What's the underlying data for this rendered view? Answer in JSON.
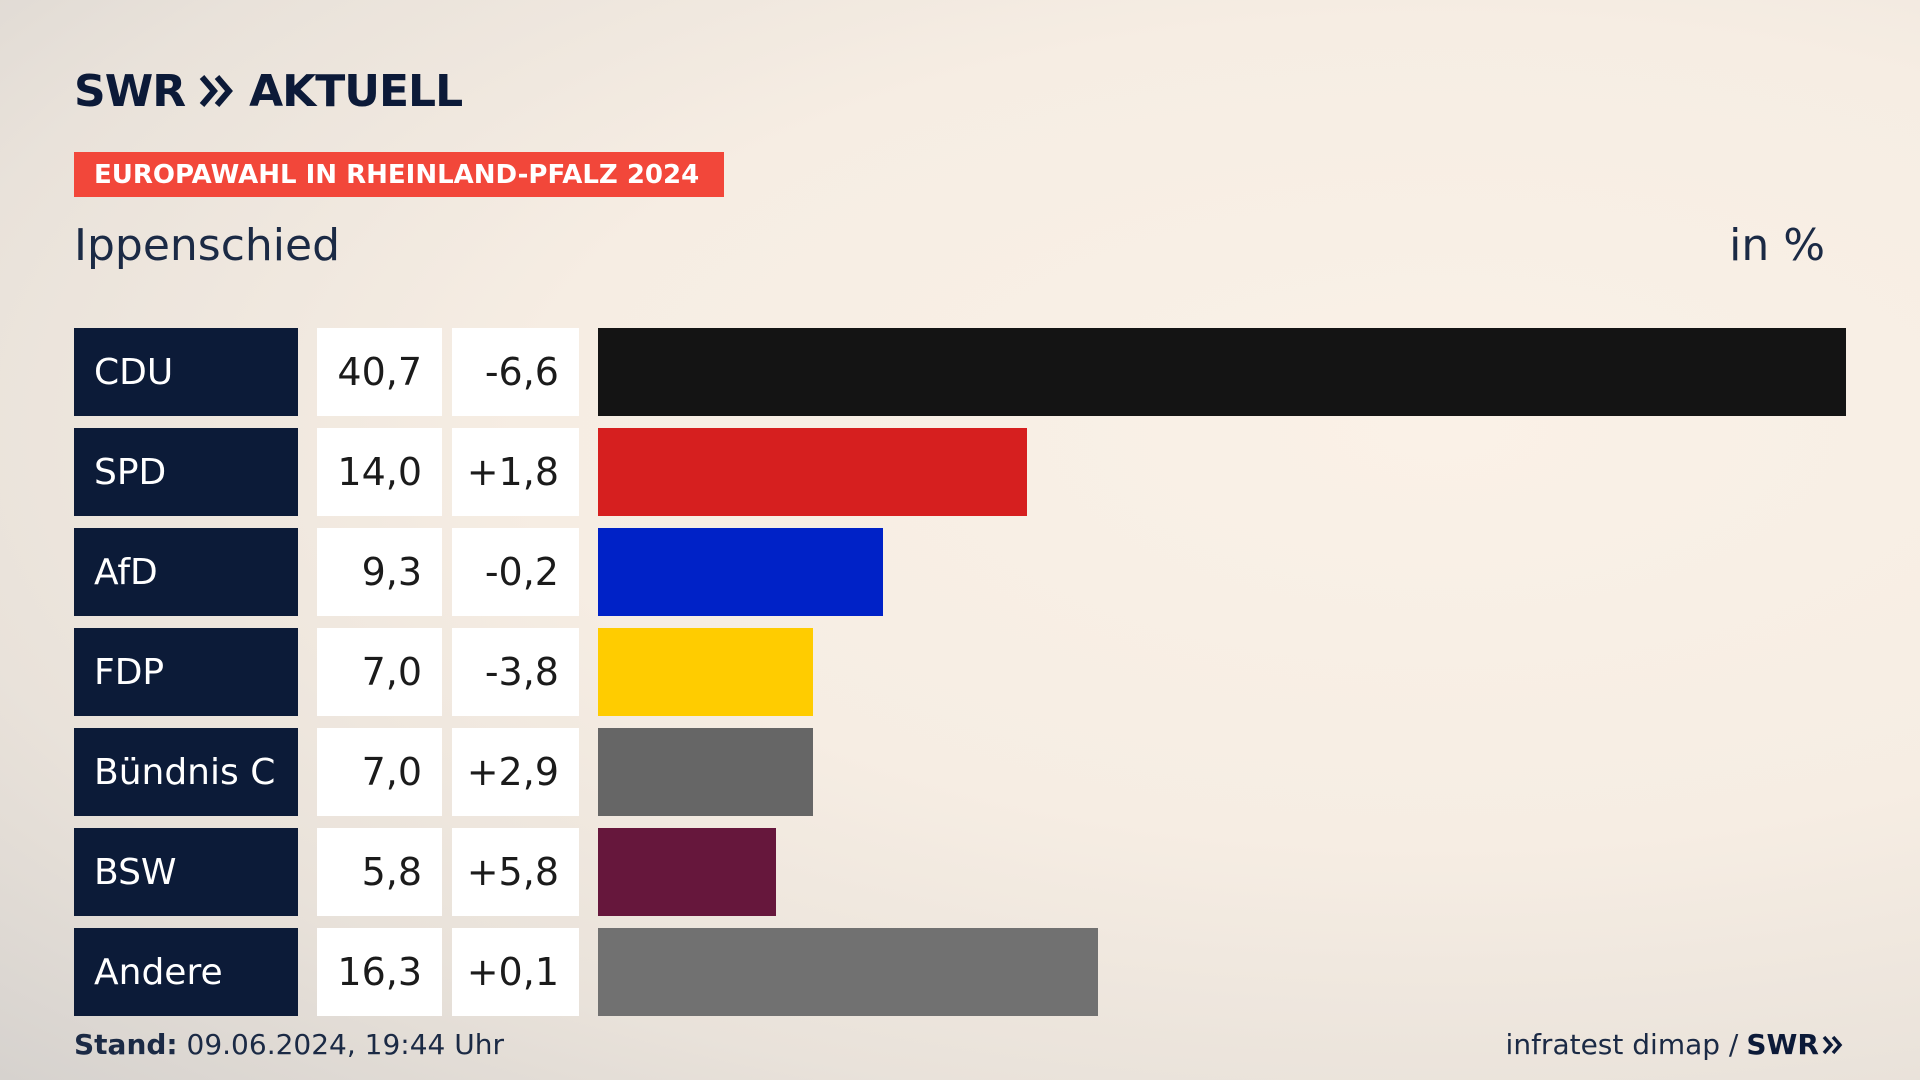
{
  "brand": {
    "logo_left": "SWR",
    "logo_right": "AKTUELL",
    "mini_logo": "SWR"
  },
  "banner": "EUROPAWAHL IN RHEINLAND-PFALZ 2024",
  "place": "Ippenschied",
  "unit": "in %",
  "footer": {
    "stand_label": "Stand:",
    "stand_value": "09.06.2024, 19:44 Uhr",
    "source": "infratest dimap /"
  },
  "colors": {
    "navy": "#0c1b38",
    "banner": "#f2473a"
  },
  "chart_data": {
    "type": "bar",
    "orientation": "horizontal",
    "categories": [
      "CDU",
      "SPD",
      "AfD",
      "FDP",
      "Bündnis C",
      "BSW",
      "Andere"
    ],
    "values": [
      40.7,
      14.0,
      9.3,
      7.0,
      7.0,
      5.8,
      16.3
    ],
    "value_labels": [
      "40,7",
      "14,0",
      "9,3",
      "7,0",
      "7,0",
      "5,8",
      "16,3"
    ],
    "change_labels": [
      "-6,6",
      "+1,8",
      "-0,2",
      "-3,8",
      "+2,9",
      "+5,8",
      "+0,1"
    ],
    "bar_colors": [
      "#141414",
      "#d61f1f",
      "#0022c7",
      "#ffcc00",
      "#666666",
      "#66173c",
      "#717171"
    ],
    "xlim": [
      0,
      40.7
    ]
  }
}
